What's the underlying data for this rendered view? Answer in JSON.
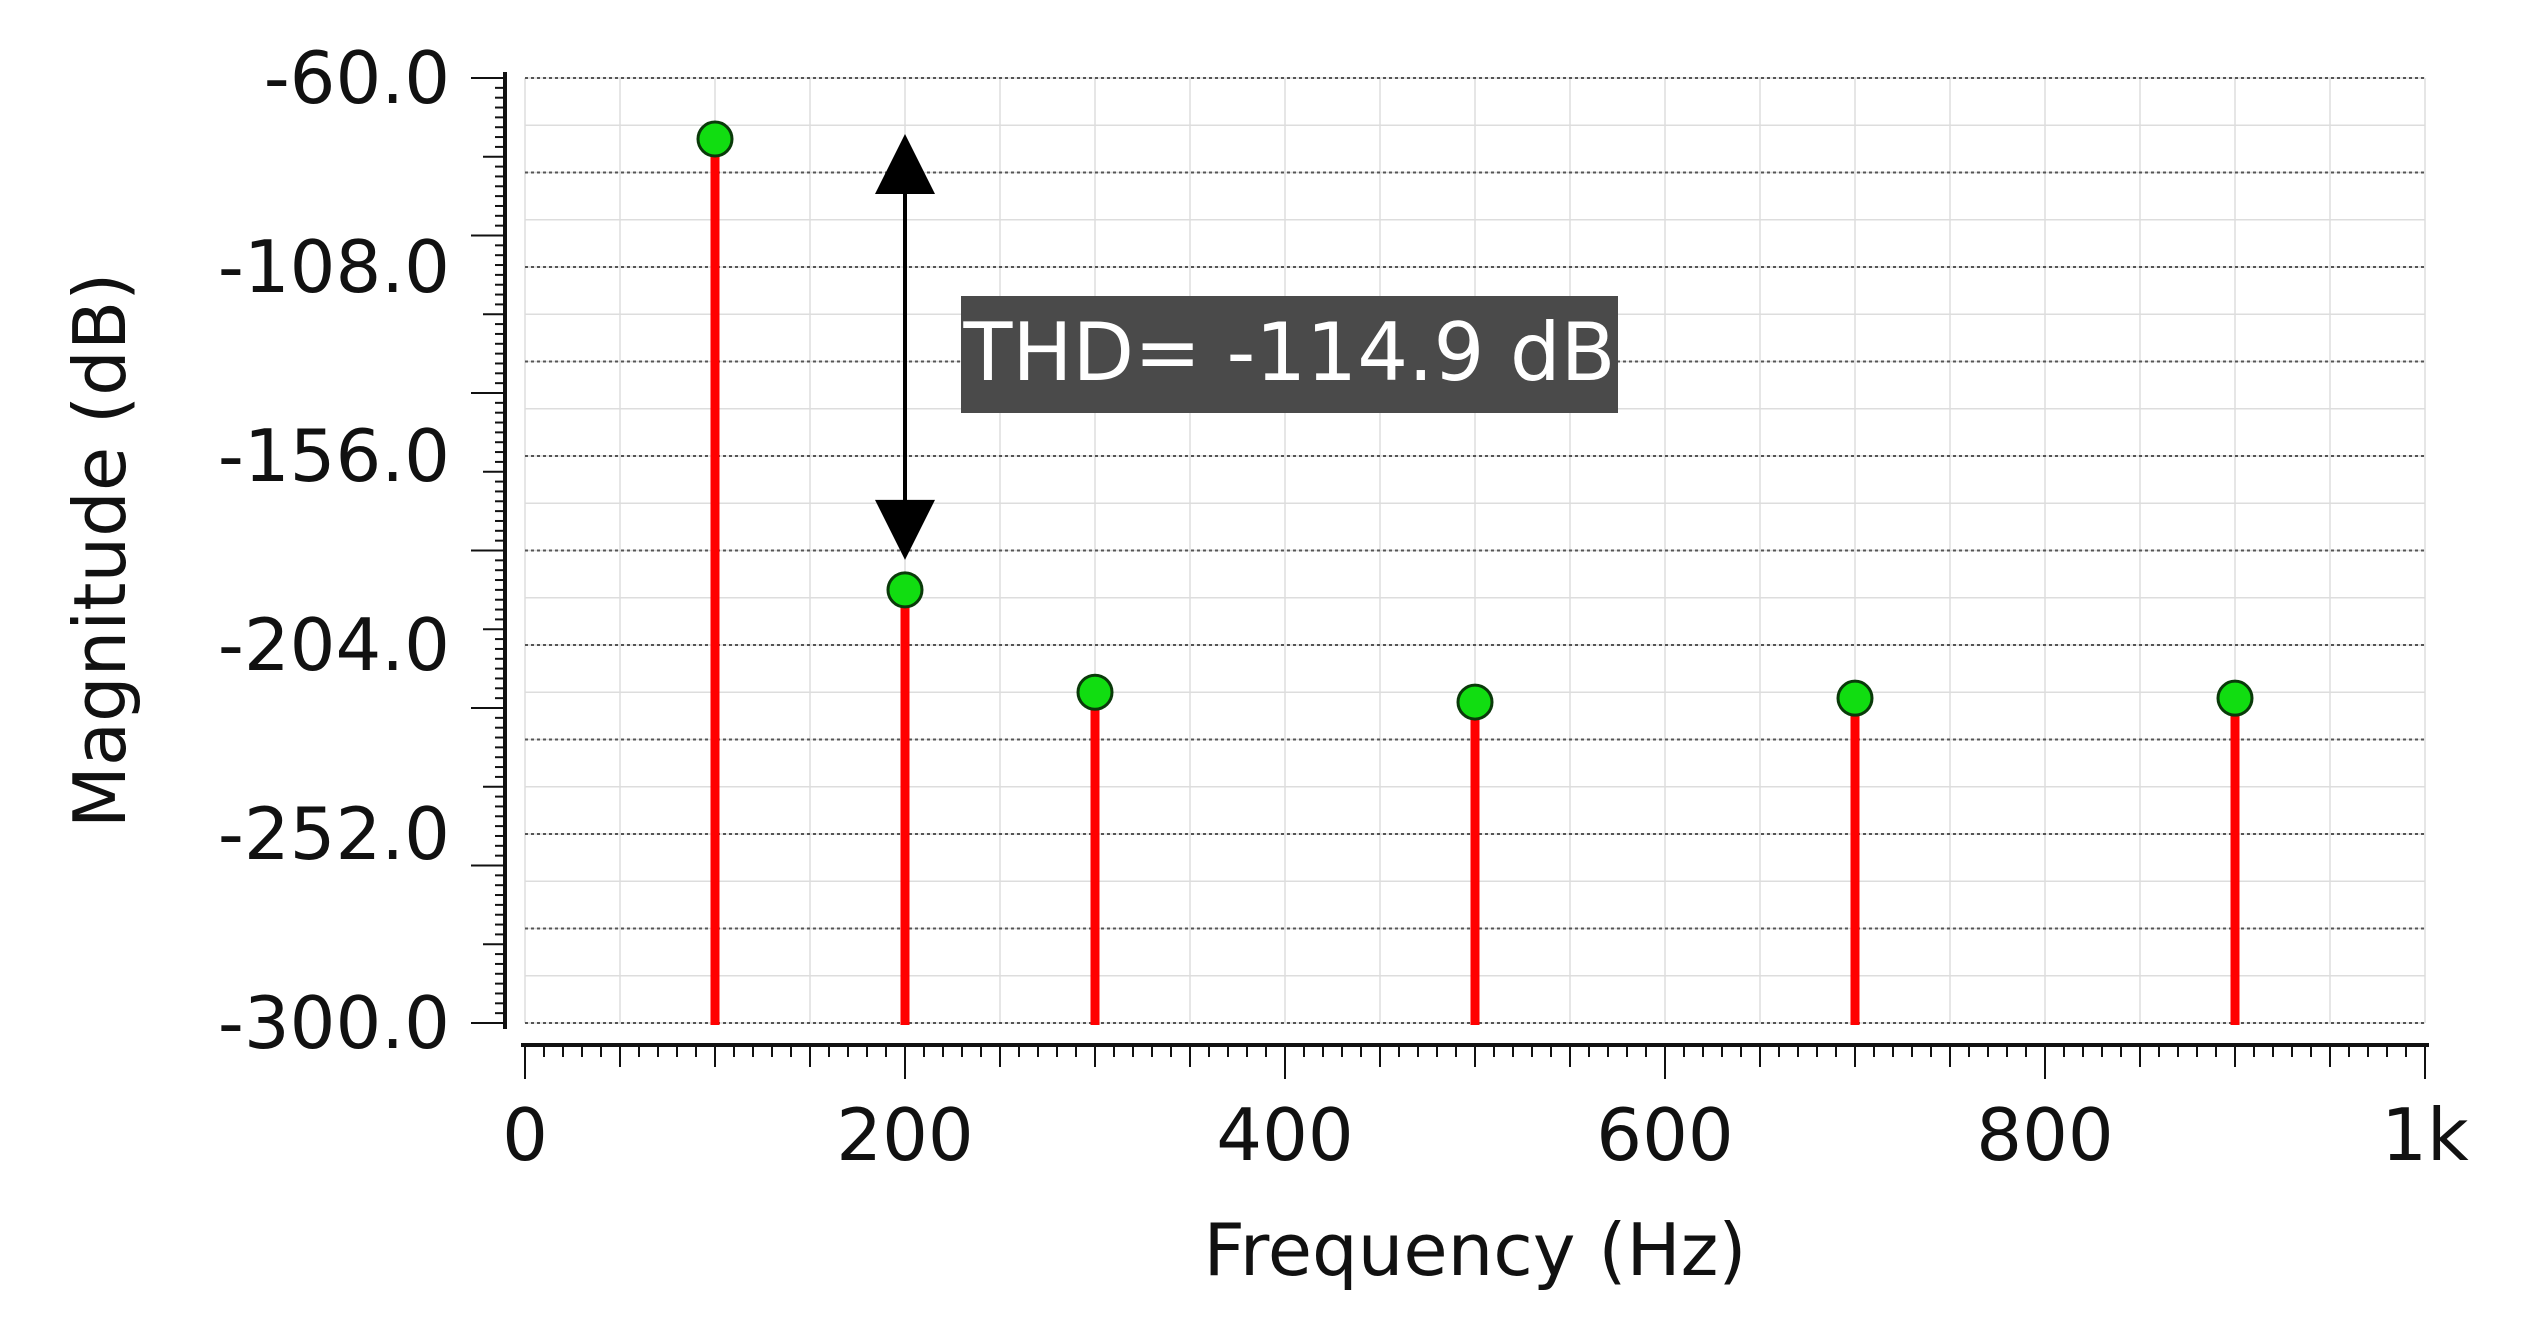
{
  "chart_data": {
    "type": "stem",
    "xlabel": "Frequency (Hz)",
    "ylabel": "Magnitude (dB)",
    "xlim": [
      0,
      1000
    ],
    "ylim": [
      -300,
      -60
    ],
    "x_ticks": [
      {
        "value": 0,
        "label": "0"
      },
      {
        "value": 200,
        "label": "200"
      },
      {
        "value": 400,
        "label": "400"
      },
      {
        "value": 600,
        "label": "600"
      },
      {
        "value": 800,
        "label": "800"
      },
      {
        "value": 1000,
        "label": "1k"
      }
    ],
    "y_ticks": [
      {
        "value": -60,
        "label": "-60.0"
      },
      {
        "value": -108,
        "label": "-108.0"
      },
      {
        "value": -156,
        "label": "-156.0"
      },
      {
        "value": -204,
        "label": "-204.0"
      },
      {
        "value": -252,
        "label": "-252.0"
      },
      {
        "value": -300,
        "label": "-300.0"
      }
    ],
    "points": [
      {
        "x": 100,
        "y": -75.5
      },
      {
        "x": 200,
        "y": -190
      },
      {
        "x": 300,
        "y": -216
      },
      {
        "x": 500,
        "y": -218.5
      },
      {
        "x": 700,
        "y": -217.5
      },
      {
        "x": 900,
        "y": -217.5
      }
    ],
    "grid": true,
    "colors": {
      "stem": "#ff0000",
      "marker": "#11dd11",
      "marker_edge": "#0a3a0a",
      "grid_major": "#555555",
      "grid_minor": "#dddddd",
      "annotation_bg": "#4a4a4a",
      "annotation_text": "#ffffff"
    },
    "annotation": {
      "text": "THD= -114.9 dB",
      "x": 200,
      "y_from": -75.5,
      "y_to": -190
    }
  }
}
